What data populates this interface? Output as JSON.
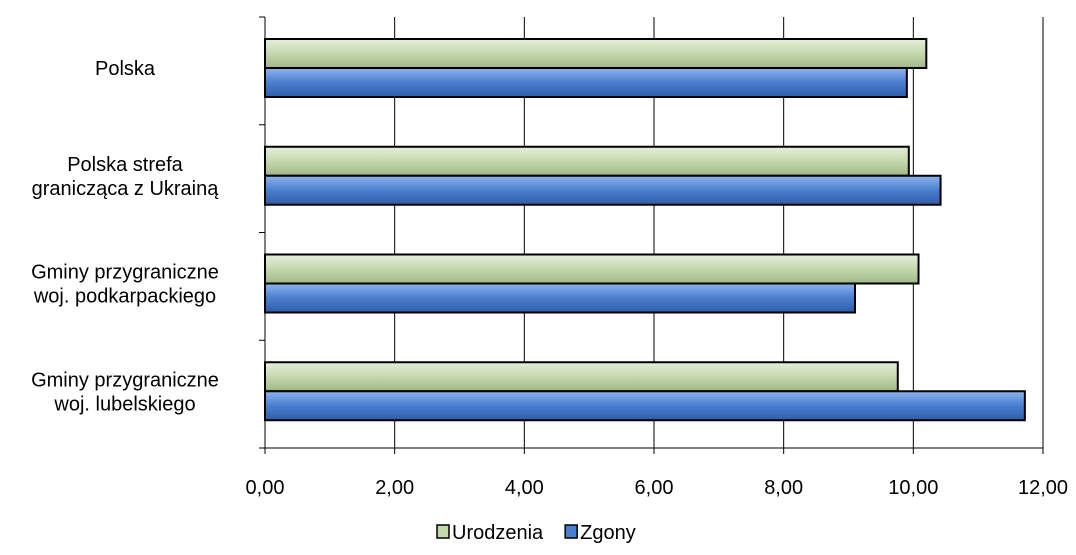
{
  "chart_data": {
    "type": "bar",
    "orientation": "horizontal",
    "categories": [
      [
        "Polska"
      ],
      [
        "Polska strefa",
        "granicząca z Ukrainą"
      ],
      [
        "Gminy przygraniczne",
        "woj. podkarpackiego"
      ],
      [
        "Gminy przygraniczne",
        "woj. lubelskiego"
      ]
    ],
    "series": [
      {
        "name": "Urodzenia",
        "values": [
          10.2,
          9.93,
          10.08,
          9.76
        ],
        "color": "#c4d8ad"
      },
      {
        "name": "Zgony",
        "values": [
          9.9,
          10.42,
          9.1,
          11.72
        ],
        "color": "#4a7ed0"
      }
    ],
    "xlim": [
      0,
      12
    ],
    "x_ticks": [
      "0,00",
      "2,00",
      "4,00",
      "6,00",
      "8,00",
      "10,00",
      "12,00"
    ],
    "grid": "vertical",
    "legend_position": "bottom"
  }
}
